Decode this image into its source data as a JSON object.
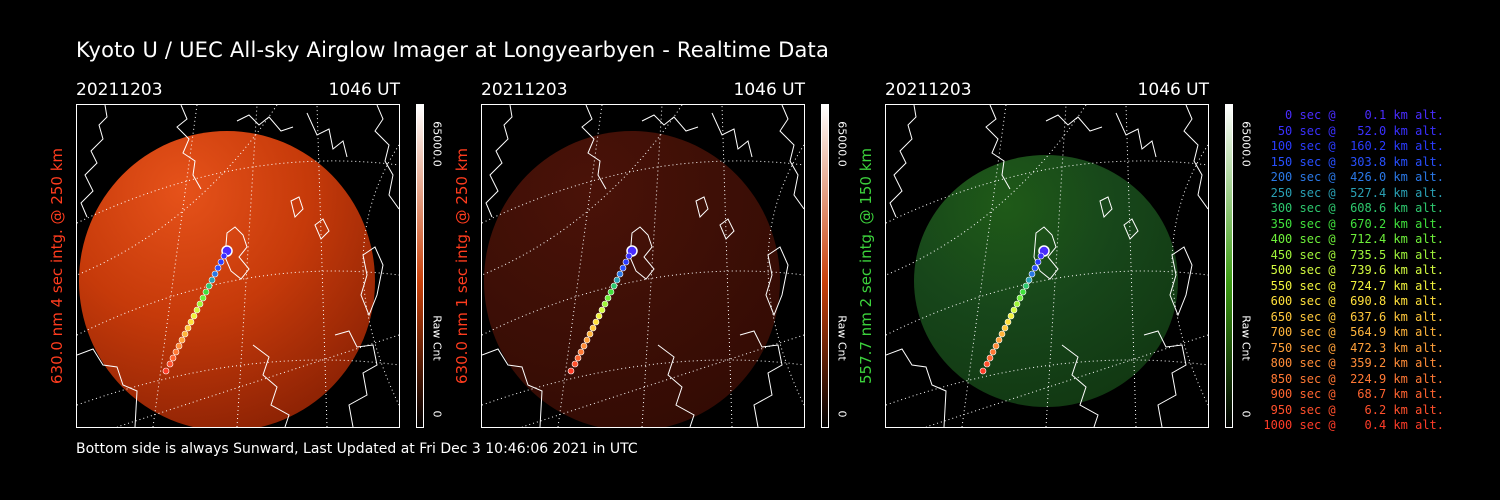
{
  "title": "Kyoto U / UEC All-sky Airglow Imager at Longyearbyen - Realtime Data",
  "panels": [
    {
      "date": "20211203",
      "time": "1046 UT",
      "ylabel": "630.0 nm 4 sec intg. @ 250 km",
      "label_color": "#ff3c1e",
      "cbar_max": "65000.0",
      "cbar_unit": "Raw Cnt",
      "cbar_min": "0",
      "cbar_color": "#c8400a",
      "image_glow": "#e6521a",
      "image_mid": "#c63a0a",
      "image_edge": "#8c2204",
      "image_opacity": 1.0
    },
    {
      "date": "20211203",
      "time": "1046 UT",
      "ylabel": "630.0 nm 1 sec intg. @ 250 km",
      "label_color": "#ff3c1e",
      "cbar_max": "65000.0",
      "cbar_unit": "Raw Cnt",
      "cbar_min": "0",
      "cbar_color": "#c8400a",
      "image_glow": "#4a1208",
      "image_mid": "#3e0f06",
      "image_edge": "#330b04",
      "image_opacity": 1.0
    },
    {
      "date": "20211203",
      "time": "1046 UT",
      "ylabel": "557.7 nm 2 sec intg. @ 150 km",
      "label_color": "#3cd23c",
      "cbar_max": "65000.0",
      "cbar_unit": "Raw Cnt",
      "cbar_min": "0",
      "cbar_color": "#3c9a14",
      "image_glow": "#1f5a18",
      "image_mid": "#17461a",
      "image_edge": "#113812",
      "image_opacity": 1.0
    }
  ],
  "legend": [
    {
      "text": "   0 sec @    0.1 km alt.",
      "color": "#4a2cff"
    },
    {
      "text": "  50 sec @   52.0 km alt.",
      "color": "#3a30ff"
    },
    {
      "text": " 100 sec @  160.2 km alt.",
      "color": "#2a3cff"
    },
    {
      "text": " 150 sec @  303.8 km alt.",
      "color": "#2850ff"
    },
    {
      "text": " 200 sec @  426.0 km alt.",
      "color": "#2a78e6"
    },
    {
      "text": " 250 sec @  527.4 km alt.",
      "color": "#2aa0b4"
    },
    {
      "text": " 300 sec @  608.6 km alt.",
      "color": "#2ec86e"
    },
    {
      "text": " 350 sec @  670.2 km alt.",
      "color": "#40e03c"
    },
    {
      "text": " 400 sec @  712.4 km alt.",
      "color": "#6ef03a"
    },
    {
      "text": " 450 sec @  735.5 km alt.",
      "color": "#a0f53a"
    },
    {
      "text": " 500 sec @  739.6 km alt.",
      "color": "#d2fa40"
    },
    {
      "text": " 550 sec @  724.7 km alt.",
      "color": "#f0f23c"
    },
    {
      "text": " 600 sec @  690.8 km alt.",
      "color": "#ffe03c"
    },
    {
      "text": " 650 sec @  637.6 km alt.",
      "color": "#ffc83c"
    },
    {
      "text": " 700 sec @  564.9 km alt.",
      "color": "#ffb43c"
    },
    {
      "text": " 750 sec @  472.3 km alt.",
      "color": "#ffa03a"
    },
    {
      "text": " 800 sec @  359.2 km alt.",
      "color": "#ff8c38"
    },
    {
      "text": " 850 sec @  224.9 km alt.",
      "color": "#ff7834"
    },
    {
      "text": " 900 sec @   68.7 km alt.",
      "color": "#ff6430"
    },
    {
      "text": " 950 sec @    6.2 km alt.",
      "color": "#ff502c"
    },
    {
      "text": "1000 sec @    0.4 km alt.",
      "color": "#ff3c28"
    }
  ],
  "footer": "Bottom side is always Sunward, Last Updated at Fri Dec  3 10:46:06 2021 in UTC"
}
